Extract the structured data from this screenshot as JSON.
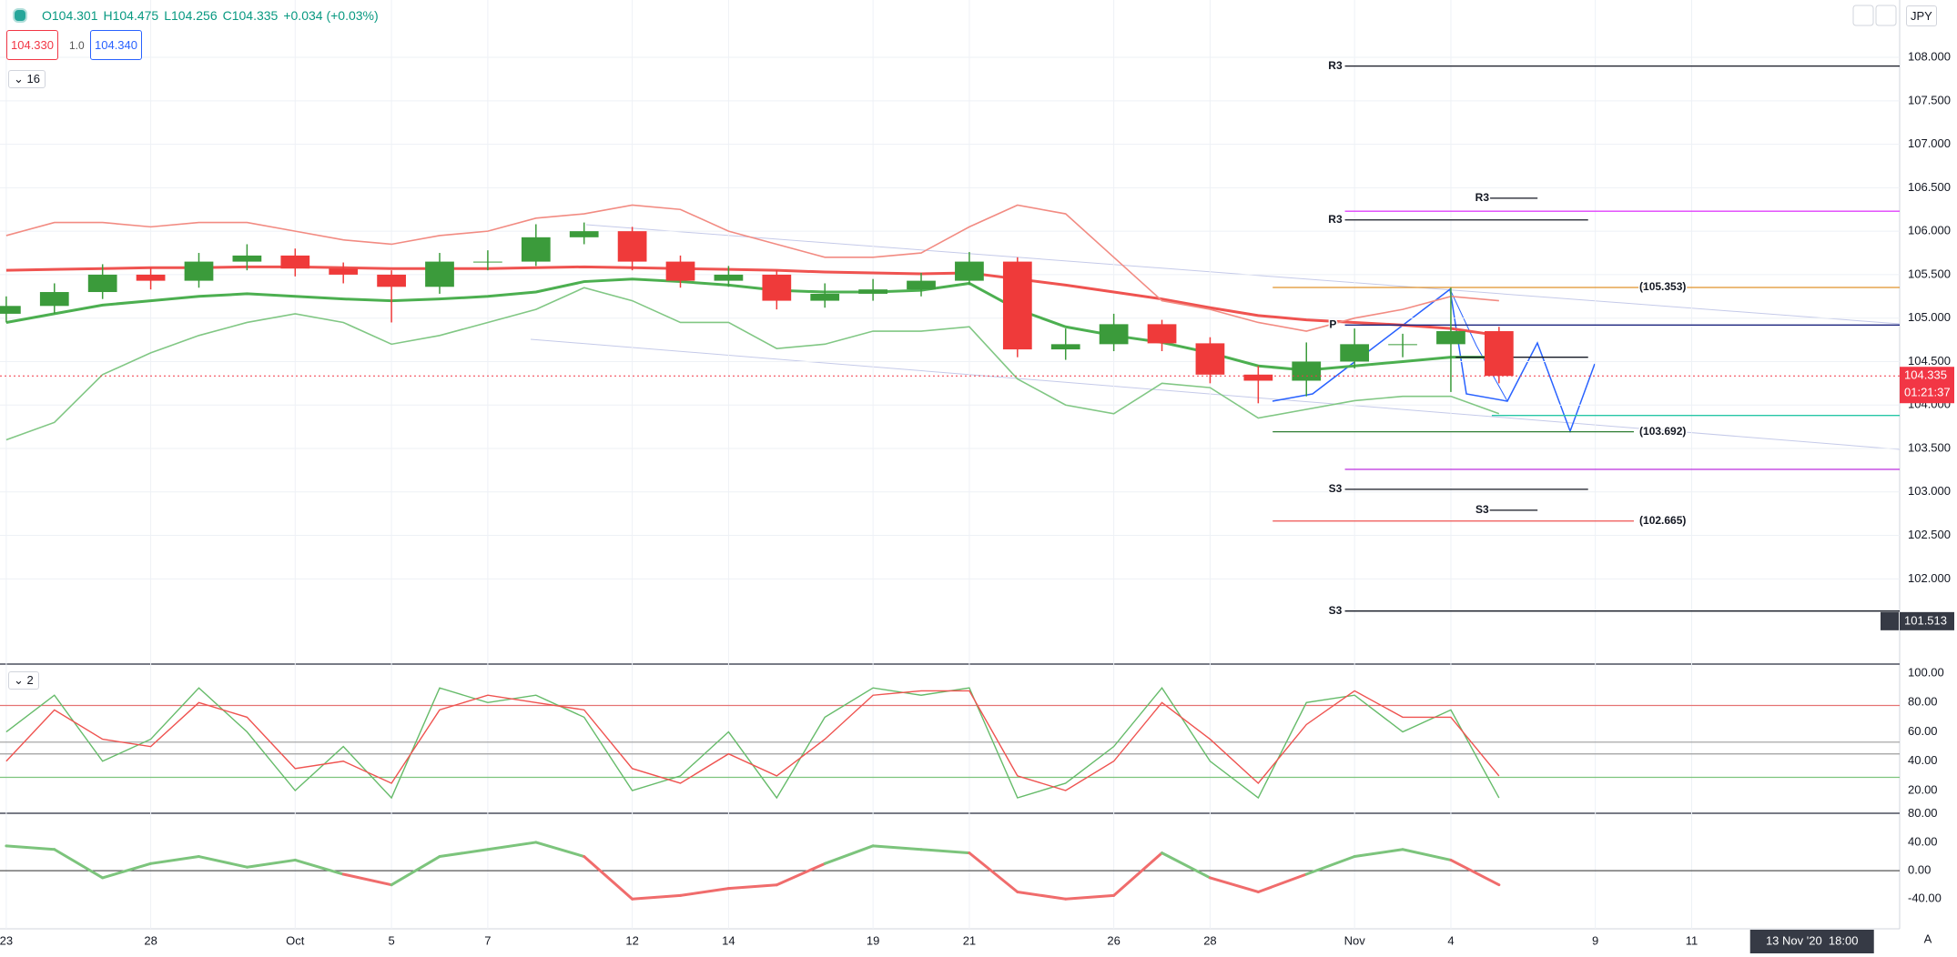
{
  "header": {
    "ohlc": [
      "O104.301",
      "H104.475",
      "L104.256",
      "C104.335",
      "+0.034 (+0.03%)"
    ],
    "bid": "104.330",
    "spread": "1.0",
    "ask": "104.340",
    "collapse_count": "16",
    "currency": "JPY",
    "auto": "A"
  },
  "chart_data": [
    {
      "type": "candlestick",
      "x": [
        0,
        1,
        2,
        3,
        4,
        5,
        6,
        7,
        8,
        9,
        10,
        11,
        12,
        13,
        14,
        15,
        16,
        17,
        18,
        19,
        20,
        21,
        22,
        23,
        24,
        25,
        26,
        27,
        28,
        29,
        30,
        31
      ],
      "open": [
        105.05,
        105.14,
        105.3,
        105.5,
        105.43,
        105.65,
        105.72,
        105.57,
        105.5,
        105.36,
        105.65,
        105.65,
        105.93,
        106.0,
        105.65,
        105.43,
        105.5,
        105.2,
        105.28,
        105.33,
        105.43,
        105.65,
        104.64,
        104.7,
        104.93,
        104.71,
        104.35,
        104.28,
        104.5,
        104.7,
        104.7,
        104.85
      ],
      "high": [
        105.25,
        105.4,
        105.62,
        105.58,
        105.75,
        105.85,
        105.8,
        105.64,
        105.55,
        105.75,
        105.78,
        106.08,
        106.1,
        106.05,
        105.72,
        105.6,
        105.55,
        105.4,
        105.45,
        105.52,
        105.76,
        105.7,
        104.88,
        105.05,
        104.98,
        104.78,
        104.45,
        104.72,
        104.88,
        104.82,
        105.35,
        104.9
      ],
      "low": [
        104.95,
        105.05,
        105.22,
        105.33,
        105.35,
        105.55,
        105.48,
        105.4,
        104.95,
        105.28,
        105.55,
        105.6,
        105.85,
        105.55,
        105.35,
        105.36,
        105.1,
        105.12,
        105.2,
        105.25,
        105.38,
        104.55,
        104.52,
        104.62,
        104.62,
        104.25,
        104.02,
        104.1,
        104.42,
        104.55,
        104.15,
        104.25
      ],
      "close": [
        105.14,
        105.3,
        105.5,
        105.43,
        105.65,
        105.72,
        105.57,
        105.5,
        105.36,
        105.65,
        105.65,
        105.93,
        106.0,
        105.65,
        105.43,
        105.5,
        105.2,
        105.28,
        105.33,
        105.43,
        105.65,
        104.64,
        104.7,
        104.93,
        104.71,
        104.35,
        104.28,
        104.5,
        104.7,
        104.7,
        104.85,
        104.335
      ],
      "up_color": "#3b9b3b",
      "down_color": "#ef3a3a",
      "series": [
        {
          "color": "#ef5350",
          "width": 3,
          "values": [
            105.55,
            105.56,
            105.57,
            105.58,
            105.58,
            105.59,
            105.59,
            105.58,
            105.57,
            105.57,
            105.57,
            105.58,
            105.59,
            105.58,
            105.57,
            105.56,
            105.55,
            105.53,
            105.52,
            105.51,
            105.52,
            105.45,
            105.38,
            105.3,
            105.22,
            105.12,
            105.03,
            104.98,
            104.95,
            104.92,
            104.88,
            104.8
          ]
        },
        {
          "color": "#4caf50",
          "width": 3,
          "values": [
            104.95,
            105.05,
            105.15,
            105.2,
            105.25,
            105.28,
            105.25,
            105.22,
            105.2,
            105.22,
            105.25,
            105.3,
            105.42,
            105.45,
            105.42,
            105.38,
            105.32,
            105.3,
            105.3,
            105.32,
            105.4,
            105.1,
            104.9,
            104.8,
            104.72,
            104.6,
            104.45,
            104.4,
            104.45,
            104.5,
            104.55,
            104.55
          ]
        },
        {
          "color": "#f28b82",
          "width": 1.6,
          "values": [
            105.95,
            106.1,
            106.1,
            106.05,
            106.1,
            106.1,
            106.0,
            105.9,
            105.85,
            105.95,
            106.0,
            106.15,
            106.2,
            106.3,
            106.25,
            106.0,
            105.85,
            105.7,
            105.7,
            105.75,
            106.05,
            106.3,
            106.2,
            105.7,
            105.2,
            105.1,
            104.95,
            104.85,
            105.0,
            105.1,
            105.25,
            105.2
          ]
        },
        {
          "color": "#81c784",
          "width": 1.6,
          "values": [
            103.6,
            103.8,
            104.35,
            104.6,
            104.8,
            104.95,
            105.05,
            104.95,
            104.7,
            104.8,
            104.95,
            105.1,
            105.35,
            105.2,
            104.95,
            104.95,
            104.65,
            104.7,
            104.85,
            104.85,
            104.9,
            104.3,
            104.0,
            103.9,
            104.25,
            104.2,
            103.85,
            103.95,
            104.05,
            104.1,
            104.1,
            103.9
          ]
        }
      ],
      "xlim": [
        -0.13,
        39.32
      ],
      "xticks": [
        {
          "value": 0,
          "label": "23"
        },
        {
          "value": 3,
          "label": "28"
        },
        {
          "value": 6,
          "label": "Oct"
        },
        {
          "value": 8,
          "label": "5"
        },
        {
          "value": 10,
          "label": "7"
        },
        {
          "value": 13,
          "label": "12"
        },
        {
          "value": 15,
          "label": "14"
        },
        {
          "value": 18,
          "label": "19"
        },
        {
          "value": 20,
          "label": "21"
        },
        {
          "value": 23,
          "label": "26"
        },
        {
          "value": 25,
          "label": "28"
        },
        {
          "value": 28,
          "label": "Nov"
        },
        {
          "value": 30,
          "label": "4"
        },
        {
          "value": 33,
          "label": "9"
        },
        {
          "value": 35,
          "label": "11"
        }
      ],
      "ylim": [
        101.03,
        108.66
      ],
      "yticks": [
        {
          "value": 108,
          "label": "108.000"
        },
        {
          "value": 107.5,
          "label": "107.500"
        },
        {
          "value": 107,
          "label": "107.000"
        },
        {
          "value": 106.5,
          "label": "106.500"
        },
        {
          "value": 106,
          "label": "106.000"
        },
        {
          "value": 105.5,
          "label": "105.500"
        },
        {
          "value": 105,
          "label": "105.000"
        },
        {
          "value": 104.5,
          "label": "104.500"
        },
        {
          "value": 104,
          "label": "104.000"
        },
        {
          "value": 103.5,
          "label": "103.500"
        },
        {
          "value": 103,
          "label": "103.000"
        },
        {
          "value": 102.5,
          "label": "102.500"
        },
        {
          "value": 102,
          "label": "102.000"
        }
      ],
      "grid": true,
      "levels": [
        {
          "label": "R3",
          "value": 107.9,
          "color": "#131722",
          "x_range": [
            27.8,
            39.32
          ],
          "label_x": 27.6
        },
        {
          "label": "R3",
          "value": 106.38,
          "color": "#131722",
          "x_range": [
            30.8,
            31.8
          ],
          "label_x": 30.65
        },
        {
          "value": 106.23,
          "color": "#e040fb",
          "x_range": [
            27.8,
            39.32
          ]
        },
        {
          "label": "R3",
          "value": 106.13,
          "color": "#131722",
          "x_range": [
            27.8,
            32.85
          ],
          "label_x": 27.6
        },
        {
          "label": "(105.353)",
          "value": 105.353,
          "color": "#e0922b",
          "x_range": [
            26.3,
            39.32
          ],
          "label_x": 34.4
        },
        {
          "label": "P",
          "value": 104.92,
          "color": "#1a237e",
          "x_range": [
            27.8,
            39.32
          ],
          "label_x": 27.55
        },
        {
          "value": 104.55,
          "color": "#131722",
          "x_range": [
            30.1,
            32.85
          ]
        },
        {
          "value": 103.88,
          "color": "#26c6a6",
          "x_range": [
            30.85,
            39.32
          ]
        },
        {
          "label": "(103.692)",
          "value": 103.692,
          "color": "#2e7d32",
          "x_range": [
            26.3,
            33.8
          ],
          "label_x": 34.4
        },
        {
          "value": 103.26,
          "color": "#c040e0",
          "x_range": [
            27.8,
            39.32
          ]
        },
        {
          "label": "S3",
          "value": 103.03,
          "color": "#131722",
          "x_range": [
            27.8,
            32.85
          ],
          "label_x": 27.6
        },
        {
          "label": "S3",
          "value": 102.79,
          "color": "#131722",
          "x_range": [
            30.8,
            31.8
          ],
          "label_x": 30.65
        },
        {
          "label": "(102.665)",
          "value": 102.665,
          "color": "#ef5350",
          "x_range": [
            26.3,
            33.8
          ],
          "label_x": 34.4
        },
        {
          "label": "S3",
          "value": 101.63,
          "color": "#131722",
          "x_range": [
            27.8,
            39.32
          ],
          "label_x": 27.6
        }
      ],
      "last_price": {
        "value": 104.335,
        "label": "104.335",
        "color": "#f23645"
      },
      "countdown": "01:21:37",
      "crosshair": {
        "x": 37.5,
        "x_label": "13 Nov '20  18:00",
        "y": 101.513,
        "y_label": "101.513"
      }
    },
    {
      "type": "line",
      "collapse_count": "2",
      "series": [
        {
          "color": "#66bb6a",
          "values": [
            60,
            85,
            40,
            55,
            90,
            60,
            20,
            50,
            15,
            90,
            80,
            85,
            70,
            20,
            30,
            60,
            15,
            70,
            90,
            85,
            90,
            15,
            25,
            50,
            90,
            40,
            15,
            80,
            85,
            60,
            75,
            15
          ]
        },
        {
          "color": "#ef5350",
          "values": [
            40,
            75,
            55,
            50,
            80,
            70,
            35,
            40,
            25,
            75,
            85,
            80,
            75,
            35,
            25,
            45,
            30,
            55,
            85,
            88,
            88,
            30,
            20,
            40,
            80,
            55,
            25,
            65,
            88,
            70,
            70,
            30
          ]
        }
      ],
      "ylim": [
        4.5,
        105
      ],
      "yticks": [
        {
          "value": 100,
          "label": "100.00"
        },
        {
          "value": 80,
          "label": "80.00"
        },
        {
          "value": 60,
          "label": "60.00"
        },
        {
          "value": 40,
          "label": "40.00"
        },
        {
          "value": 20,
          "label": "20.00"
        }
      ],
      "hlines": [
        {
          "value": 78,
          "color": "#e57373"
        },
        {
          "value": 53,
          "color": "#9e9e9e"
        },
        {
          "value": 45,
          "color": "#9e9e9e"
        },
        {
          "value": 29,
          "color": "#7cc47c"
        }
      ]
    },
    {
      "type": "line",
      "series": [
        {
          "color": "#7cc47c",
          "negative_color": "#f06c6c",
          "values": [
            35,
            30,
            -10,
            10,
            20,
            5,
            15,
            -5,
            -20,
            20,
            30,
            40,
            20,
            -40,
            -35,
            -25,
            -20,
            10,
            35,
            30,
            25,
            -30,
            -40,
            -35,
            25,
            -10,
            -30,
            -5,
            20,
            30,
            15,
            -20
          ]
        }
      ],
      "ylim": [
        -82,
        81
      ],
      "yticks": [
        {
          "value": 80,
          "label": "80.00"
        },
        {
          "value": 40,
          "label": "40.00"
        },
        {
          "value": 0,
          "label": "0.00"
        },
        {
          "value": -40,
          "label": "-40.00"
        }
      ],
      "hlines": [
        {
          "value": 0,
          "color": "#555555"
        }
      ]
    }
  ]
}
